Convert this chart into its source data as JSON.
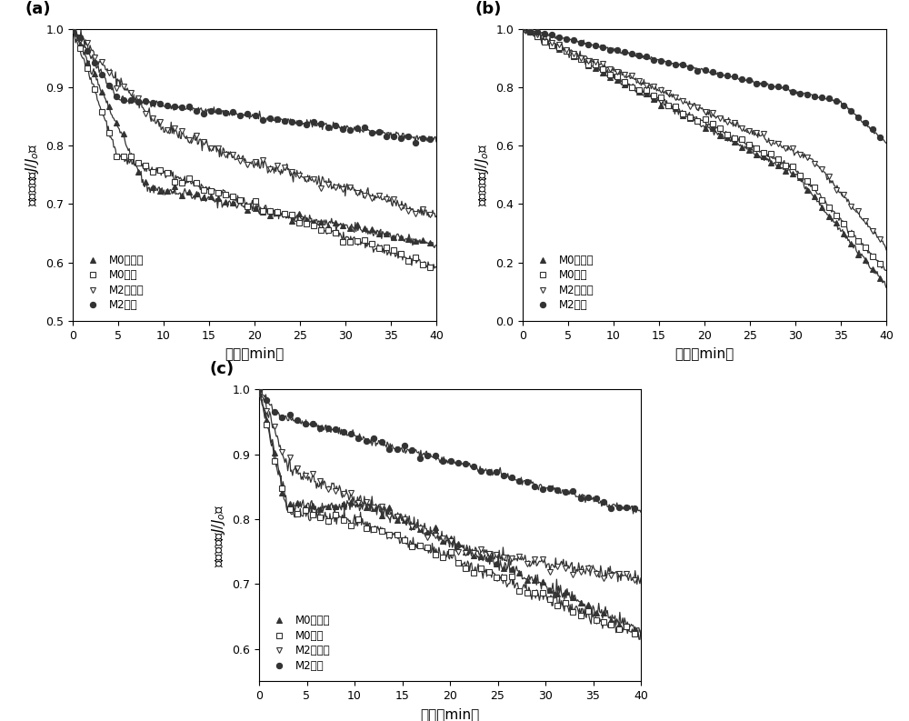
{
  "subplot_a": {
    "title": "(a)",
    "ylim": [
      0.5,
      1.0
    ],
    "yticks": [
      0.5,
      0.6,
      0.7,
      0.8,
      0.9,
      1.0
    ],
    "xlim": [
      0,
      40
    ],
    "xticks": [
      0,
      5,
      10,
      15,
      20,
      25,
      30,
      35,
      40
    ]
  },
  "subplot_b": {
    "title": "(b)",
    "ylim": [
      0.0,
      1.0
    ],
    "yticks": [
      0.0,
      0.2,
      0.4,
      0.6,
      0.8,
      1.0
    ],
    "xlim": [
      0,
      40
    ],
    "xticks": [
      0,
      5,
      10,
      15,
      20,
      25,
      30,
      35,
      40
    ]
  },
  "subplot_c": {
    "title": "(c)",
    "ylim": [
      0.55,
      1.0
    ],
    "yticks": [
      0.6,
      0.7,
      0.8,
      0.9,
      1.0
    ],
    "xlim": [
      0,
      40
    ],
    "xticks": [
      0,
      5,
      10,
      15,
      20,
      25,
      30,
      35,
      40
    ]
  },
  "xlabel": "时间（min）",
  "ylabel": "相对通量（J/J₀）",
  "line_color": "#333333",
  "marker_size": 4.5,
  "fontsize_label": 11,
  "fontsize_tick": 9,
  "fontsize_title": 13
}
